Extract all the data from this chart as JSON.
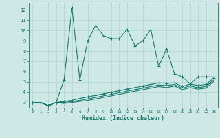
{
  "xlabel": "Humidex (Indice chaleur)",
  "x_values": [
    0,
    1,
    2,
    3,
    4,
    5,
    6,
    7,
    8,
    9,
    10,
    11,
    12,
    13,
    14,
    15,
    16,
    17,
    18,
    19,
    20,
    21,
    22,
    23
  ],
  "line1_y": [
    3.0,
    3.0,
    2.7,
    3.0,
    5.2,
    12.2,
    5.2,
    9.0,
    10.5,
    9.5,
    9.2,
    9.2,
    10.1,
    8.5,
    9.0,
    10.1,
    6.5,
    8.2,
    5.8,
    5.5,
    4.8,
    5.5,
    5.5,
    5.5
  ],
  "line2_y": [
    3.0,
    3.0,
    2.7,
    3.0,
    3.1,
    3.2,
    3.4,
    3.55,
    3.7,
    3.85,
    4.0,
    4.15,
    4.3,
    4.45,
    4.6,
    4.75,
    4.9,
    4.85,
    4.9,
    4.55,
    4.8,
    4.65,
    4.75,
    5.4
  ],
  "line3_y": [
    3.0,
    3.0,
    2.7,
    3.0,
    3.0,
    3.1,
    3.2,
    3.35,
    3.5,
    3.65,
    3.8,
    3.95,
    4.1,
    4.25,
    4.4,
    4.55,
    4.7,
    4.65,
    4.75,
    4.4,
    4.6,
    4.45,
    4.55,
    5.2
  ],
  "line4_y": [
    3.0,
    3.0,
    2.7,
    3.0,
    2.9,
    3.0,
    3.1,
    3.2,
    3.35,
    3.5,
    3.65,
    3.8,
    3.95,
    4.1,
    4.25,
    4.4,
    4.55,
    4.45,
    4.6,
    4.25,
    4.45,
    4.3,
    4.4,
    5.05
  ],
  "line_color": "#1a7a6e",
  "bg_color": "#cee9e5",
  "grid_color": "#afd4cf",
  "ylim": [
    2.5,
    12.7
  ],
  "xlim": [
    -0.5,
    23.5
  ],
  "yticks": [
    3,
    4,
    5,
    6,
    7,
    8,
    9,
    10,
    11,
    12
  ],
  "xticks": [
    0,
    1,
    2,
    3,
    4,
    5,
    6,
    7,
    8,
    9,
    10,
    11,
    12,
    13,
    14,
    15,
    16,
    17,
    18,
    19,
    20,
    21,
    22,
    23
  ]
}
